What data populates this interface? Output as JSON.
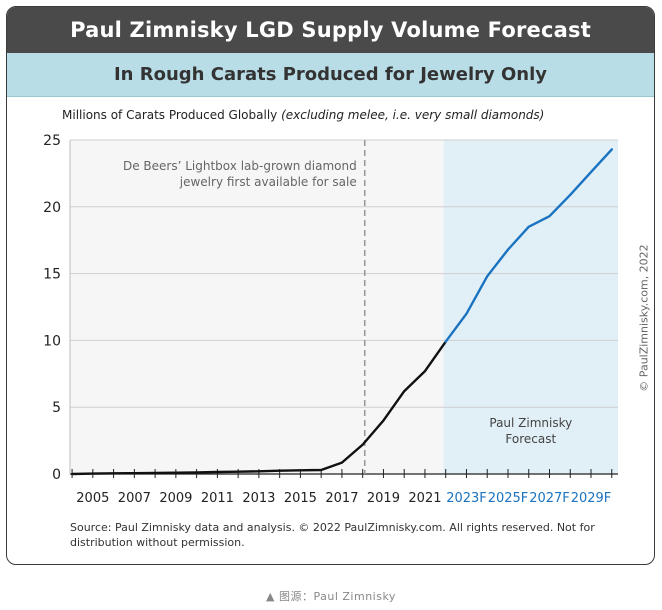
{
  "header": {
    "title": "Paul Zimnisky LGD Supply Volume Forecast",
    "subtitle": "In Rough Carats Produced for Jewelry Only"
  },
  "chart_data": {
    "type": "line",
    "ylabel_main": "Millions of Carats Produced Globally",
    "ylabel_note": "(excluding melee, i.e. very small diamonds)",
    "ylim": [
      0,
      25
    ],
    "yticks": [
      0,
      5,
      10,
      15,
      20,
      25
    ],
    "xlim": [
      2003.9,
      2030.3
    ],
    "xtick_labels": [
      {
        "x": 2005,
        "label": "2005",
        "forecast": false
      },
      {
        "x": 2007,
        "label": "2007",
        "forecast": false
      },
      {
        "x": 2009,
        "label": "2009",
        "forecast": false
      },
      {
        "x": 2011,
        "label": "2011",
        "forecast": false
      },
      {
        "x": 2013,
        "label": "2013",
        "forecast": false
      },
      {
        "x": 2015,
        "label": "2015",
        "forecast": false
      },
      {
        "x": 2017,
        "label": "2017",
        "forecast": false
      },
      {
        "x": 2019,
        "label": "2019",
        "forecast": false
      },
      {
        "x": 2021,
        "label": "2021",
        "forecast": false
      },
      {
        "x": 2023,
        "label": "2023F",
        "forecast": true
      },
      {
        "x": 2025,
        "label": "2025F",
        "forecast": true
      },
      {
        "x": 2027,
        "label": "2027F",
        "forecast": true
      },
      {
        "x": 2029,
        "label": "2029F",
        "forecast": true
      }
    ],
    "grid": true,
    "series": [
      {
        "color": "#111111",
        "x": [
          2004,
          2005,
          2006,
          2007,
          2008,
          2009,
          2010,
          2011,
          2012,
          2013,
          2014,
          2015,
          2016,
          2017,
          2018,
          2019,
          2020,
          2021,
          2022
        ],
        "values": [
          0.0,
          0.03,
          0.05,
          0.06,
          0.08,
          0.1,
          0.12,
          0.15,
          0.17,
          0.2,
          0.25,
          0.28,
          0.3,
          0.85,
          2.2,
          4.0,
          6.2,
          7.7,
          9.9
        ]
      },
      {
        "color": "#1a73c0",
        "x": [
          2022,
          2023,
          2024,
          2025,
          2026,
          2027,
          2028,
          2029,
          2030
        ],
        "values": [
          9.9,
          12.0,
          14.8,
          16.8,
          18.5,
          19.3,
          20.9,
          22.6,
          24.3
        ]
      }
    ],
    "forecast_region": {
      "x_start": 2021.9,
      "color": "#e1eff7",
      "label_lines": [
        "Paul Zimnisky",
        "Forecast"
      ]
    },
    "annotation": {
      "x": 2018.1,
      "label_lines": [
        "De Beers’ Lightbox lab-grown diamond",
        "jewelry first available for sale"
      ]
    }
  },
  "footer": {
    "source": "Source: Paul Zimnisky data and analysis. © 2022 PaulZimnisky.com. All rights reserved. Not for distribution without permission.",
    "copyright": "© PaulZimnisky.com, 2022"
  },
  "caption": "▲ 图源：Paul Zimnisky",
  "colors": {
    "header_bg": "#4a4a4a",
    "subheader_bg": "#b9dde6",
    "history": "#111111",
    "forecast": "#1a73c0",
    "forecast_bg": "#e1eff7"
  }
}
